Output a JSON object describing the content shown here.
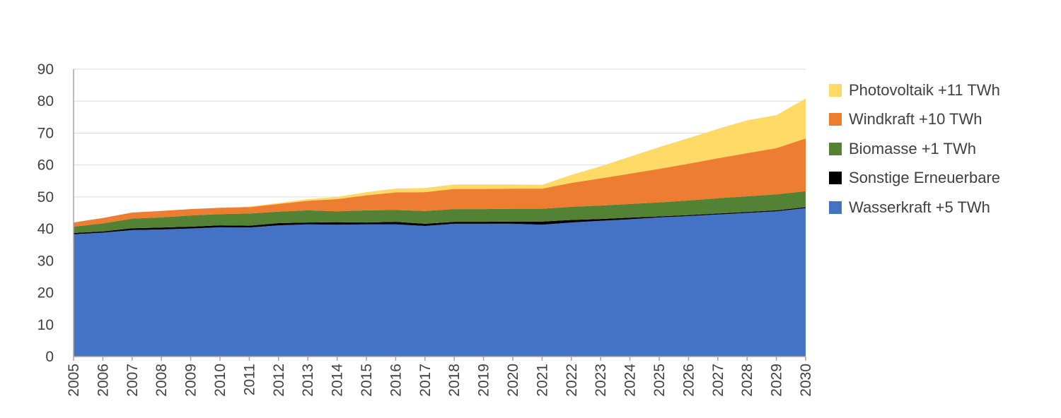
{
  "chart_data": {
    "type": "area",
    "stacked": true,
    "x": [
      "2005",
      "2006",
      "2007",
      "2008",
      "2009",
      "2010",
      "2011",
      "2012",
      "2013",
      "2014",
      "2015",
      "2016",
      "2017",
      "2018",
      "2019",
      "2020",
      "2021",
      "2022",
      "2023",
      "2024",
      "2025",
      "2026",
      "2027",
      "2028",
      "2029",
      "2030"
    ],
    "ylim": [
      0,
      90
    ],
    "yticks": [
      0,
      10,
      20,
      30,
      40,
      50,
      60,
      70,
      80,
      90
    ],
    "grid": true,
    "legend_position": "right",
    "series": [
      {
        "name": "Wasserkraft +5 TWh",
        "color": "#4472c4",
        "values": [
          38.3,
          38.8,
          39.6,
          39.8,
          40.1,
          40.5,
          40.4,
          41.1,
          41.4,
          41.3,
          41.4,
          41.4,
          40.9,
          41.6,
          41.6,
          41.6,
          41.3,
          42.0,
          42.5,
          43.0,
          43.6,
          44.0,
          44.5,
          45.0,
          45.5,
          46.5
        ]
      },
      {
        "name": "Sonstige Erneuerbare",
        "color": "#000000",
        "values": [
          0.4,
          0.4,
          0.6,
          0.6,
          0.6,
          0.6,
          0.6,
          0.7,
          0.6,
          0.8,
          0.6,
          0.8,
          0.7,
          0.6,
          0.6,
          0.7,
          1.0,
          0.8,
          0.6,
          0.5,
          0.3,
          0.3,
          0.3,
          0.3,
          0.3,
          0.3
        ]
      },
      {
        "name": "Biomasse +1 TWh",
        "color": "#548235",
        "values": [
          2.0,
          2.5,
          3.0,
          3.2,
          3.5,
          3.5,
          3.8,
          3.6,
          3.8,
          3.4,
          3.8,
          3.7,
          4.0,
          4.0,
          4.0,
          4.0,
          4.0,
          4.1,
          4.2,
          4.3,
          4.4,
          4.6,
          4.8,
          4.9,
          5.0,
          5.0
        ]
      },
      {
        "name": "Windkraft +10 TWh",
        "color": "#ed7d31",
        "values": [
          1.3,
          1.7,
          1.9,
          2.0,
          2.0,
          2.0,
          2.0,
          2.4,
          3.0,
          3.8,
          4.7,
          5.5,
          5.9,
          6.3,
          6.3,
          6.3,
          6.3,
          7.5,
          8.5,
          9.5,
          10.5,
          11.5,
          12.5,
          13.5,
          14.5,
          16.5
        ]
      },
      {
        "name": "Photovoltaik +11 TWh",
        "color": "#ffd966",
        "values": [
          0,
          0,
          0,
          0,
          0,
          0,
          0.2,
          0.3,
          0.5,
          0.7,
          1.0,
          1.2,
          1.3,
          1.4,
          1.4,
          1.3,
          1.2,
          2.5,
          3.8,
          5.3,
          6.8,
          8.0,
          9.2,
          10.3,
          10.3,
          12.5
        ]
      }
    ]
  }
}
